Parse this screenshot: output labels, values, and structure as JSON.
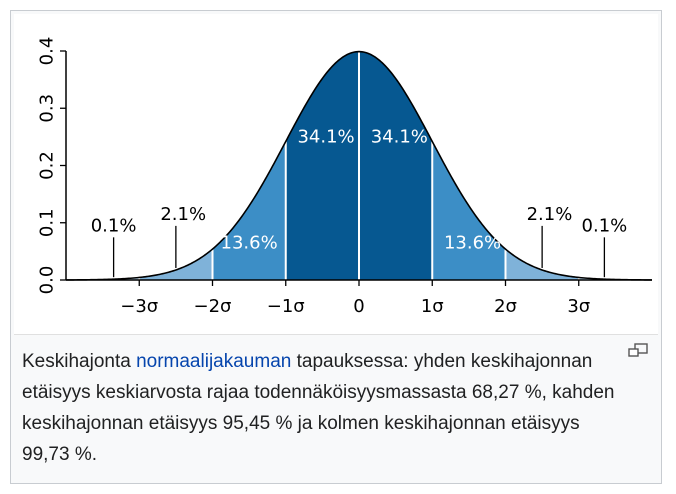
{
  "chart_data": {
    "type": "area",
    "distribution": "normal",
    "xlabel": "",
    "ylabel": "",
    "xlim": [
      -4,
      4
    ],
    "ylim": [
      0,
      0.4
    ],
    "x_ticks": [
      {
        "value": -3,
        "label": "−3σ"
      },
      {
        "value": -2,
        "label": "−2σ"
      },
      {
        "value": -1,
        "label": "−1σ"
      },
      {
        "value": 0,
        "label": "0"
      },
      {
        "value": 1,
        "label": "1σ"
      },
      {
        "value": 2,
        "label": "2σ"
      },
      {
        "value": 3,
        "label": "3σ"
      }
    ],
    "y_ticks": [
      {
        "value": 0.0,
        "label": "0.0"
      },
      {
        "value": 0.1,
        "label": "0.1"
      },
      {
        "value": 0.2,
        "label": "0.2"
      },
      {
        "value": 0.3,
        "label": "0.3"
      },
      {
        "value": 0.4,
        "label": "0.4"
      }
    ],
    "regions": [
      {
        "from": -4,
        "to": -3,
        "percent": 0.1,
        "label": "0.1%",
        "color": "#b9d7ec",
        "label_style": "pointer",
        "label_x": -3.35,
        "label_y": 0.085,
        "pointer_x": -3.35
      },
      {
        "from": -3,
        "to": -2,
        "percent": 2.1,
        "label": "2.1%",
        "color": "#7fb2d9",
        "label_style": "pointer",
        "label_x": -2.4,
        "label_y": 0.105,
        "pointer_x": -2.5
      },
      {
        "from": -2,
        "to": -1,
        "percent": 13.6,
        "label": "13.6%",
        "color": "#3c8ec6",
        "label_style": "inside",
        "label_x": -1.5,
        "label_y": 0.055
      },
      {
        "from": -1,
        "to": 0,
        "percent": 34.1,
        "label": "34.1%",
        "color": "#065891",
        "label_style": "inside",
        "label_x": -0.45,
        "label_y": 0.24
      },
      {
        "from": 0,
        "to": 1,
        "percent": 34.1,
        "label": "34.1%",
        "color": "#065891",
        "label_style": "inside",
        "label_x": 0.55,
        "label_y": 0.24
      },
      {
        "from": 1,
        "to": 2,
        "percent": 13.6,
        "label": "13.6%",
        "color": "#3c8ec6",
        "label_style": "inside",
        "label_x": 1.55,
        "label_y": 0.055
      },
      {
        "from": 2,
        "to": 3,
        "percent": 2.1,
        "label": "2.1%",
        "color": "#7fb2d9",
        "label_style": "pointer",
        "label_x": 2.6,
        "label_y": 0.105,
        "pointer_x": 2.5
      },
      {
        "from": 3,
        "to": 4,
        "percent": 0.1,
        "label": "0.1%",
        "color": "#b9d7ec",
        "label_style": "pointer",
        "label_x": 3.35,
        "label_y": 0.085,
        "pointer_x": 3.35
      }
    ]
  },
  "caption": {
    "before_link": "Keskihajonta ",
    "link": "normaalijakauman",
    "after_link": " tapauksessa: yhden keskihajonnan etäisyys keskiarvosta rajaa todennäköisyysmassasta 68,27 %, kahden keskihajonnan etäisyys 95,45 % ja kolmen keskihajonnan etäisyys 99,73 %."
  },
  "icons": {
    "enlarge": "enlarge-icon"
  },
  "colors": {
    "link": "#0645ad",
    "border": "#c8ccd1",
    "thumb_background": "#f8f9fa"
  }
}
